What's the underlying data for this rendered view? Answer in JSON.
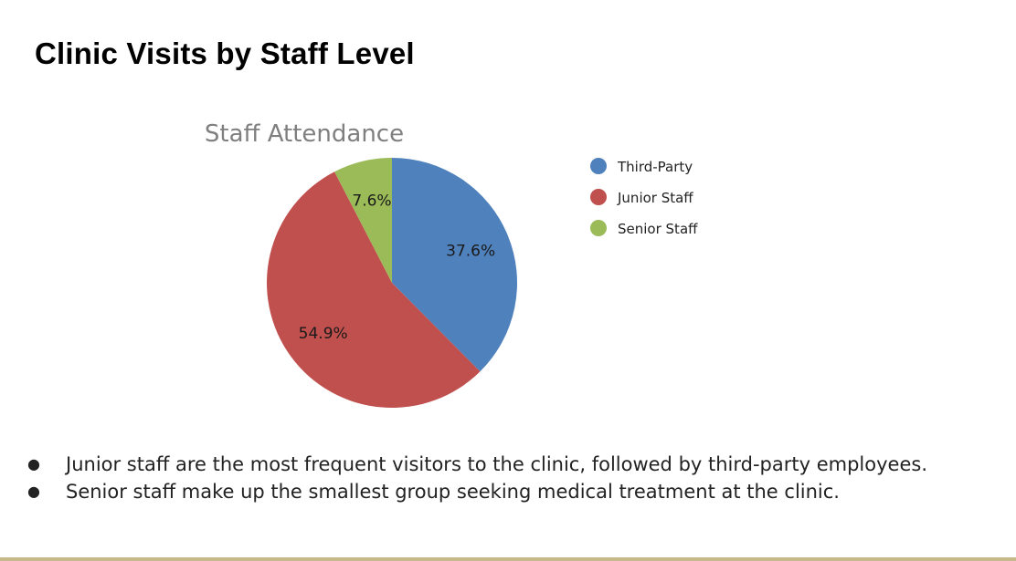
{
  "slide": {
    "title": "Clinic Visits by Staff Level",
    "bullets": [
      "Junior staff are the most frequent visitors to the clinic, followed by third-party employees.",
      "Senior staff make up the smallest group seeking medical treatment at the clinic."
    ],
    "bullet_marker": "●",
    "accent_rule_color": "#c8b98a"
  },
  "chart_data": {
    "type": "pie",
    "title": "Staff Attendance",
    "categories": [
      "Third-Party",
      "Junior Staff",
      "Senior Staff"
    ],
    "values": [
      37.6,
      54.9,
      7.6
    ],
    "value_labels": [
      "37.6%",
      "54.9%",
      "7.6%"
    ],
    "colors": [
      "#4f81bd",
      "#c0504d",
      "#9bbb59"
    ],
    "start": "12 o'clock",
    "direction": "clockwise",
    "legend_position": "right"
  }
}
